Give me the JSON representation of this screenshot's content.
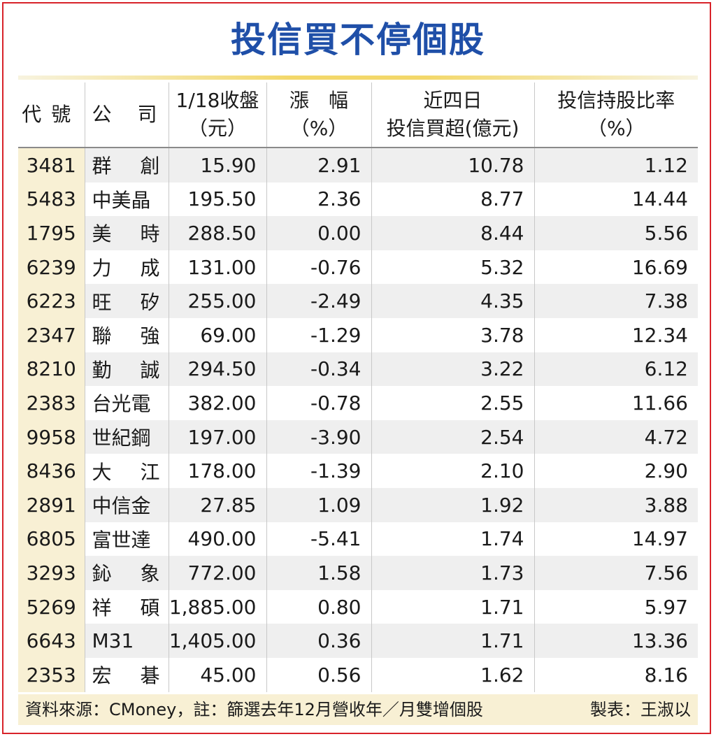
{
  "title": "投信買不停個股",
  "headers": {
    "code": "代號",
    "company_a": "公",
    "company_b": "司",
    "close_line1": "1/18收盤",
    "close_line2": "（元）",
    "change_line1": "漲　幅",
    "change_line2": "（%）",
    "buy_line1": "近四日",
    "buy_line2": "投信買超(億元)",
    "hold_line1": "投信持股比率",
    "hold_line2": "（%）"
  },
  "rows": [
    {
      "code": "3481",
      "name": [
        "群",
        "創"
      ],
      "close": "15.90",
      "change": "2.91",
      "buy": "10.78",
      "hold": "1.12"
    },
    {
      "code": "5483",
      "name": [
        "中美晶"
      ],
      "close": "195.50",
      "change": "2.36",
      "buy": "8.77",
      "hold": "14.44"
    },
    {
      "code": "1795",
      "name": [
        "美",
        "時"
      ],
      "close": "288.50",
      "change": "0.00",
      "buy": "8.44",
      "hold": "5.56"
    },
    {
      "code": "6239",
      "name": [
        "力",
        "成"
      ],
      "close": "131.00",
      "change": "-0.76",
      "buy": "5.32",
      "hold": "16.69"
    },
    {
      "code": "6223",
      "name": [
        "旺",
        "矽"
      ],
      "close": "255.00",
      "change": "-2.49",
      "buy": "4.35",
      "hold": "7.38"
    },
    {
      "code": "2347",
      "name": [
        "聯",
        "強"
      ],
      "close": "69.00",
      "change": "-1.29",
      "buy": "3.78",
      "hold": "12.34"
    },
    {
      "code": "8210",
      "name": [
        "勤",
        "誠"
      ],
      "close": "294.50",
      "change": "-0.34",
      "buy": "3.22",
      "hold": "6.12"
    },
    {
      "code": "2383",
      "name": [
        "台光電"
      ],
      "close": "382.00",
      "change": "-0.78",
      "buy": "2.55",
      "hold": "11.66"
    },
    {
      "code": "9958",
      "name": [
        "世紀鋼"
      ],
      "close": "197.00",
      "change": "-3.90",
      "buy": "2.54",
      "hold": "4.72"
    },
    {
      "code": "8436",
      "name": [
        "大",
        "江"
      ],
      "close": "178.00",
      "change": "-1.39",
      "buy": "2.10",
      "hold": "2.90"
    },
    {
      "code": "2891",
      "name": [
        "中信金"
      ],
      "close": "27.85",
      "change": "1.09",
      "buy": "1.92",
      "hold": "3.88"
    },
    {
      "code": "6805",
      "name": [
        "富世達"
      ],
      "close": "490.00",
      "change": "-5.41",
      "buy": "1.74",
      "hold": "14.97"
    },
    {
      "code": "3293",
      "name": [
        "鈊",
        "象"
      ],
      "close": "772.00",
      "change": "1.58",
      "buy": "1.73",
      "hold": "7.56"
    },
    {
      "code": "5269",
      "name": [
        "祥",
        "碩"
      ],
      "close": "1,885.00",
      "change": "0.80",
      "buy": "1.71",
      "hold": "5.97"
    },
    {
      "code": "6643",
      "name": [
        "M31"
      ],
      "close": "1,405.00",
      "change": "0.36",
      "buy": "1.71",
      "hold": "13.36"
    },
    {
      "code": "2353",
      "name": [
        "宏",
        "碁"
      ],
      "close": "45.00",
      "change": "0.56",
      "buy": "1.62",
      "hold": "8.16"
    }
  ],
  "footer": {
    "source": "資料來源：CMoney，註：篩選去年12月營收年／月雙增個股",
    "credit": "製表：王淑以"
  },
  "colors": {
    "title": "#1f4fa8",
    "frame": "#d8232a",
    "code_highlight": "#f8f0d4",
    "row_shade": "#efefef"
  }
}
